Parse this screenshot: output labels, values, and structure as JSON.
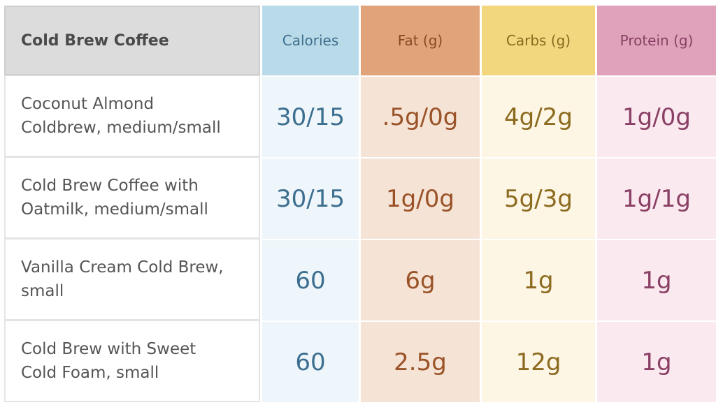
{
  "table": {
    "headers": {
      "item": "Cold Brew Coffee",
      "calories": "Calories",
      "fat": "Fat (g)",
      "carbs": "Carbs (g)",
      "protein": "Protein (g)"
    },
    "rows": [
      {
        "name_line1": "Coconut Almond",
        "name_line2": "Coldbrew, medium/small",
        "calories": "30/15",
        "fat": ".5g/0g",
        "carbs": "4g/2g",
        "protein": "1g/0g"
      },
      {
        "name_line1": "Cold Brew Coffee with",
        "name_line2": "Oatmilk, medium/small",
        "calories": "30/15",
        "fat": "1g/0g",
        "carbs": "5g/3g",
        "protein": "1g/1g"
      },
      {
        "name_line1": "Vanilla Cream Cold Brew,",
        "name_line2": "small",
        "calories": "60",
        "fat": "6g",
        "carbs": "1g",
        "protein": "1g"
      },
      {
        "name_line1": "Cold Brew with Sweet",
        "name_line2": "Cold Foam, small",
        "calories": "60",
        "fat": "2.5g",
        "carbs": "12g",
        "protein": "1g"
      }
    ]
  }
}
